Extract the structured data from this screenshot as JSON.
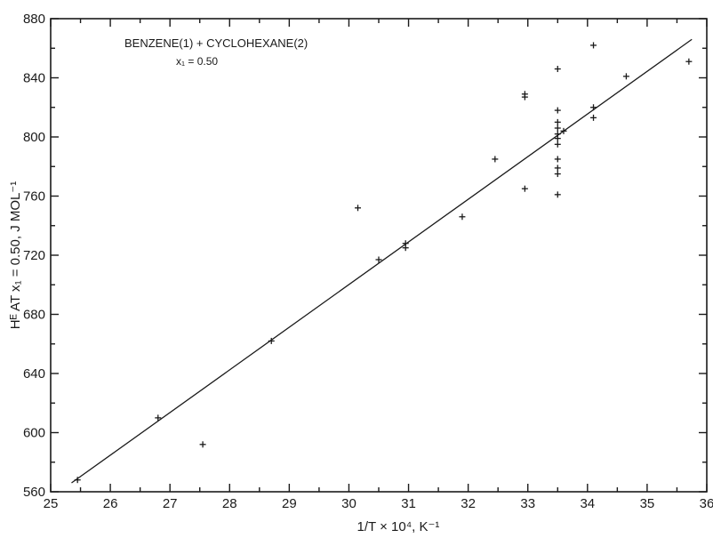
{
  "chart_data": {
    "type": "scatter",
    "xlim": [
      25,
      36
    ],
    "ylim": [
      560,
      880
    ],
    "xticks": [
      25,
      26,
      27,
      28,
      29,
      30,
      31,
      32,
      33,
      34,
      35,
      36
    ],
    "yticks": [
      560,
      600,
      640,
      680,
      720,
      760,
      800,
      840,
      880
    ],
    "xlabel": "1/T × 10⁴, K⁻¹",
    "ylabel": "Hᴱ AT x₁ = 0.50, J MOL⁻¹",
    "annotation": {
      "line1": "BENZENE(1) + CYCLOHEXANE(2)",
      "line2": "x₁ = 0.50"
    },
    "marker": "+",
    "grid": false,
    "series": [
      {
        "points": [
          [
            25.45,
            568
          ],
          [
            26.8,
            610
          ],
          [
            27.55,
            592
          ],
          [
            28.7,
            662
          ],
          [
            30.15,
            752
          ],
          [
            30.5,
            717
          ],
          [
            30.95,
            728
          ],
          [
            30.95,
            725
          ],
          [
            31.9,
            746
          ],
          [
            32.45,
            785
          ],
          [
            32.95,
            829
          ],
          [
            32.95,
            827
          ],
          [
            32.95,
            765
          ],
          [
            33.5,
            846
          ],
          [
            33.5,
            818
          ],
          [
            33.5,
            810
          ],
          [
            33.5,
            806
          ],
          [
            33.5,
            802
          ],
          [
            33.5,
            799
          ],
          [
            33.5,
            795
          ],
          [
            33.5,
            785
          ],
          [
            33.5,
            779
          ],
          [
            33.5,
            775
          ],
          [
            33.5,
            761
          ],
          [
            33.6,
            804
          ],
          [
            34.1,
            862
          ],
          [
            34.1,
            820
          ],
          [
            34.1,
            813
          ],
          [
            34.65,
            841
          ],
          [
            35.7,
            851
          ]
        ]
      }
    ],
    "fit_line": {
      "x": [
        25.35,
        35.75
      ],
      "y": [
        566,
        866
      ]
    }
  }
}
